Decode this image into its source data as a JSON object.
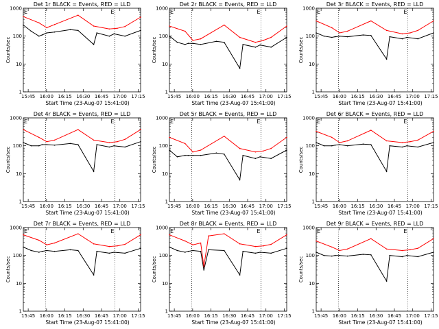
{
  "chart_data": [
    {
      "type": "line",
      "title": "Det 1r BLACK = Events, RED = LLD",
      "det": 1,
      "xlabel": "Start Time (23-Aug-07 15:41:00)",
      "ylabel": "Counts/sec",
      "x_tick_labels": [
        "15:45",
        "16:00",
        "16:15",
        "16:30",
        "16:45",
        "17:00",
        "17:15"
      ],
      "y_tick_labels": [
        "1",
        "10",
        "100",
        "1000"
      ],
      "ylim": [
        1,
        1000
      ],
      "yscale": "log",
      "marker_labels": [
        "E",
        "E"
      ],
      "red": [
        [
          0,
          500
        ],
        [
          10,
          300
        ],
        [
          15,
          200
        ],
        [
          20,
          260
        ],
        [
          35,
          560
        ],
        [
          45,
          230
        ],
        [
          55,
          180
        ],
        [
          60,
          190
        ],
        [
          65,
          220
        ],
        [
          75,
          480
        ]
      ],
      "black": [
        [
          0,
          250
        ],
        [
          5,
          150
        ],
        [
          10,
          100
        ],
        [
          12,
          110
        ],
        [
          15,
          130
        ],
        [
          20,
          140
        ],
        [
          30,
          170
        ],
        [
          35,
          160
        ],
        [
          45,
          50
        ],
        [
          47,
          130
        ],
        [
          55,
          100
        ],
        [
          58,
          120
        ],
        [
          65,
          100
        ],
        [
          75,
          160
        ]
      ]
    },
    {
      "type": "line",
      "title": "Det 2r BLACK = Events, RED = LLD",
      "det": 2,
      "xlabel": "Start Time (23-Aug-07 15:41:00)",
      "ylabel": "Counts/sec",
      "x_tick_labels": [
        "15:45",
        "16:00",
        "16:15",
        "16:30",
        "16:45",
        "17:00",
        "17:15"
      ],
      "y_tick_labels": [
        "1",
        "10",
        "100",
        "1000"
      ],
      "ylim": [
        1,
        1000
      ],
      "yscale": "log",
      "marker_labels": [
        "E",
        "E"
      ],
      "red": [
        [
          0,
          230
        ],
        [
          10,
          150
        ],
        [
          15,
          70
        ],
        [
          20,
          80
        ],
        [
          35,
          250
        ],
        [
          45,
          90
        ],
        [
          55,
          60
        ],
        [
          60,
          70
        ],
        [
          65,
          90
        ],
        [
          75,
          230
        ]
      ],
      "black": [
        [
          0,
          100
        ],
        [
          5,
          60
        ],
        [
          10,
          50
        ],
        [
          12,
          55
        ],
        [
          15,
          55
        ],
        [
          20,
          50
        ],
        [
          30,
          65
        ],
        [
          35,
          60
        ],
        [
          45,
          7
        ],
        [
          47,
          50
        ],
        [
          55,
          40
        ],
        [
          58,
          48
        ],
        [
          65,
          40
        ],
        [
          75,
          90
        ]
      ]
    },
    {
      "type": "line",
      "title": "Det 3r BLACK = Events, RED = LLD",
      "det": 3,
      "xlabel": "Start Time (23-Aug-07 15:41:00)",
      "ylabel": "Counts/sec",
      "x_tick_labels": [
        "15:45",
        "16:00",
        "16:15",
        "16:30",
        "16:45",
        "17:00",
        "17:15"
      ],
      "y_tick_labels": [
        "1",
        "10",
        "100",
        "1000"
      ],
      "ylim": [
        1,
        1000
      ],
      "yscale": "log",
      "marker_labels": [
        "E",
        "E"
      ],
      "red": [
        [
          0,
          350
        ],
        [
          10,
          200
        ],
        [
          15,
          130
        ],
        [
          20,
          150
        ],
        [
          35,
          350
        ],
        [
          45,
          160
        ],
        [
          55,
          120
        ],
        [
          60,
          130
        ],
        [
          65,
          160
        ],
        [
          75,
          350
        ]
      ],
      "black": [
        [
          0,
          130
        ],
        [
          5,
          100
        ],
        [
          10,
          90
        ],
        [
          12,
          95
        ],
        [
          15,
          100
        ],
        [
          20,
          95
        ],
        [
          30,
          110
        ],
        [
          35,
          105
        ],
        [
          45,
          15
        ],
        [
          47,
          95
        ],
        [
          55,
          80
        ],
        [
          58,
          90
        ],
        [
          65,
          80
        ],
        [
          75,
          130
        ]
      ]
    },
    {
      "type": "line",
      "title": "Det 4r BLACK = Events, RED = LLD",
      "det": 4,
      "xlabel": "Start Time (23-Aug-07 15:41:00)",
      "ylabel": "Counts/sec",
      "x_tick_labels": [
        "15:45",
        "16:00",
        "16:15",
        "16:30",
        "16:45",
        "17:00",
        "17:15"
      ],
      "y_tick_labels": [
        "1",
        "10",
        "100",
        "1000"
      ],
      "ylim": [
        1,
        1000
      ],
      "yscale": "log",
      "marker_labels": [
        "E",
        "E"
      ],
      "red": [
        [
          0,
          380
        ],
        [
          10,
          200
        ],
        [
          15,
          140
        ],
        [
          20,
          160
        ],
        [
          35,
          380
        ],
        [
          45,
          160
        ],
        [
          55,
          130
        ],
        [
          60,
          140
        ],
        [
          65,
          170
        ],
        [
          75,
          380
        ]
      ],
      "black": [
        [
          0,
          130
        ],
        [
          5,
          100
        ],
        [
          10,
          100
        ],
        [
          12,
          110
        ],
        [
          15,
          110
        ],
        [
          20,
          105
        ],
        [
          30,
          120
        ],
        [
          35,
          110
        ],
        [
          45,
          12
        ],
        [
          47,
          110
        ],
        [
          55,
          90
        ],
        [
          58,
          100
        ],
        [
          65,
          90
        ],
        [
          75,
          140
        ]
      ]
    },
    {
      "type": "line",
      "title": "Det 5r BLACK = Events, RED = LLD",
      "det": 5,
      "xlabel": "Start Time (23-Aug-07 15:41:00)",
      "ylabel": "Counts/sec",
      "x_tick_labels": [
        "15:45",
        "16:00",
        "16:15",
        "16:30",
        "16:45",
        "17:00",
        "17:15"
      ],
      "y_tick_labels": [
        "1",
        "10",
        "100",
        "1000"
      ],
      "ylim": [
        1,
        1000
      ],
      "yscale": "log",
      "marker_labels": [
        "E",
        "E"
      ],
      "red": [
        [
          0,
          200
        ],
        [
          10,
          120
        ],
        [
          15,
          60
        ],
        [
          20,
          70
        ],
        [
          35,
          220
        ],
        [
          45,
          80
        ],
        [
          55,
          60
        ],
        [
          60,
          65
        ],
        [
          65,
          80
        ],
        [
          75,
          200
        ]
      ],
      "black": [
        [
          0,
          70
        ],
        [
          5,
          40
        ],
        [
          10,
          45
        ],
        [
          12,
          45
        ],
        [
          15,
          45
        ],
        [
          20,
          45
        ],
        [
          30,
          55
        ],
        [
          35,
          50
        ],
        [
          45,
          6
        ],
        [
          47,
          45
        ],
        [
          55,
          35
        ],
        [
          58,
          40
        ],
        [
          65,
          35
        ],
        [
          75,
          70
        ]
      ]
    },
    {
      "type": "line",
      "title": "Det 6r BLACK = Events, RED = LLD",
      "det": 6,
      "xlabel": "Start Time (23-Aug-07 15:41:00)",
      "ylabel": "Counts/sec",
      "x_tick_labels": [
        "15:45",
        "16:00",
        "16:15",
        "16:30",
        "16:45",
        "17:00",
        "17:15"
      ],
      "y_tick_labels": [
        "1",
        "10",
        "100",
        "1000"
      ],
      "ylim": [
        1,
        1000
      ],
      "yscale": "log",
      "marker_labels": [
        "E",
        "E"
      ],
      "red": [
        [
          0,
          330
        ],
        [
          10,
          200
        ],
        [
          15,
          130
        ],
        [
          20,
          150
        ],
        [
          35,
          360
        ],
        [
          45,
          150
        ],
        [
          55,
          130
        ],
        [
          60,
          140
        ],
        [
          65,
          160
        ],
        [
          75,
          330
        ]
      ],
      "black": [
        [
          0,
          130
        ],
        [
          5,
          100
        ],
        [
          10,
          100
        ],
        [
          12,
          105
        ],
        [
          15,
          110
        ],
        [
          20,
          100
        ],
        [
          30,
          115
        ],
        [
          35,
          110
        ],
        [
          45,
          12
        ],
        [
          47,
          100
        ],
        [
          55,
          90
        ],
        [
          58,
          100
        ],
        [
          65,
          90
        ],
        [
          75,
          130
        ]
      ]
    },
    {
      "type": "line",
      "title": "Det 7r BLACK = Events, RED = LLD",
      "det": 7,
      "xlabel": "Start Time (23-Aug-07 15:41:00)",
      "ylabel": "Counts/sec",
      "x_tick_labels": [
        "15:45",
        "16:00",
        "16:15",
        "16:30",
        "16:45",
        "17:00",
        "17:15"
      ],
      "y_tick_labels": [
        "1",
        "10",
        "100",
        "1000"
      ],
      "ylim": [
        1,
        1000
      ],
      "yscale": "log",
      "marker_labels": [
        "E",
        "E"
      ],
      "red": [
        [
          0,
          550
        ],
        [
          10,
          350
        ],
        [
          15,
          240
        ],
        [
          20,
          280
        ],
        [
          35,
          600
        ],
        [
          45,
          260
        ],
        [
          55,
          210
        ],
        [
          60,
          220
        ],
        [
          65,
          250
        ],
        [
          75,
          550
        ]
      ],
      "black": [
        [
          0,
          200
        ],
        [
          5,
          150
        ],
        [
          10,
          130
        ],
        [
          12,
          140
        ],
        [
          15,
          150
        ],
        [
          20,
          140
        ],
        [
          30,
          160
        ],
        [
          35,
          150
        ],
        [
          45,
          20
        ],
        [
          47,
          140
        ],
        [
          55,
          120
        ],
        [
          58,
          130
        ],
        [
          65,
          120
        ],
        [
          75,
          180
        ]
      ]
    },
    {
      "type": "line",
      "title": "Det 8r BLACK = Events, RED = LLD",
      "det": 8,
      "xlabel": "Start Time (23-Aug-07 15:41:00)",
      "ylabel": "Counts/sec",
      "x_tick_labels": [
        "15:45",
        "16:00",
        "16:15",
        "16:30",
        "16:45",
        "17:00",
        "17:15"
      ],
      "y_tick_labels": [
        "1",
        "10",
        "100",
        "1000"
      ],
      "ylim": [
        1,
        1000
      ],
      "yscale": "log",
      "marker_labels": [
        "E",
        "E"
      ],
      "red": [
        [
          0,
          550
        ],
        [
          10,
          330
        ],
        [
          15,
          240
        ],
        [
          20,
          280
        ],
        [
          22,
          40
        ],
        [
          25,
          500
        ],
        [
          35,
          600
        ],
        [
          45,
          260
        ],
        [
          55,
          210
        ],
        [
          60,
          220
        ],
        [
          65,
          250
        ],
        [
          75,
          550
        ]
      ],
      "black": [
        [
          0,
          200
        ],
        [
          5,
          150
        ],
        [
          10,
          130
        ],
        [
          12,
          140
        ],
        [
          15,
          150
        ],
        [
          20,
          140
        ],
        [
          22,
          30
        ],
        [
          25,
          160
        ],
        [
          35,
          150
        ],
        [
          45,
          20
        ],
        [
          47,
          140
        ],
        [
          55,
          120
        ],
        [
          58,
          130
        ],
        [
          65,
          120
        ],
        [
          75,
          180
        ]
      ]
    },
    {
      "type": "line",
      "title": "Det 9r BLACK = Events, RED = LLD",
      "det": 9,
      "xlabel": "Start Time (23-Aug-07 15:41:00)",
      "ylabel": "Counts/sec",
      "x_tick_labels": [
        "15:45",
        "16:00",
        "16:15",
        "16:30",
        "16:45",
        "17:00",
        "17:15"
      ],
      "y_tick_labels": [
        "1",
        "10",
        "100",
        "1000"
      ],
      "ylim": [
        1,
        1000
      ],
      "yscale": "log",
      "marker_labels": [
        "E",
        "E"
      ],
      "red": [
        [
          0,
          330
        ],
        [
          10,
          200
        ],
        [
          15,
          150
        ],
        [
          20,
          170
        ],
        [
          35,
          400
        ],
        [
          45,
          170
        ],
        [
          55,
          150
        ],
        [
          60,
          160
        ],
        [
          65,
          180
        ],
        [
          75,
          400
        ]
      ],
      "black": [
        [
          0,
          130
        ],
        [
          5,
          100
        ],
        [
          10,
          95
        ],
        [
          12,
          100
        ],
        [
          15,
          100
        ],
        [
          20,
          95
        ],
        [
          30,
          110
        ],
        [
          35,
          105
        ],
        [
          45,
          12
        ],
        [
          47,
          100
        ],
        [
          55,
          90
        ],
        [
          58,
          100
        ],
        [
          65,
          90
        ],
        [
          75,
          130
        ]
      ]
    }
  ]
}
